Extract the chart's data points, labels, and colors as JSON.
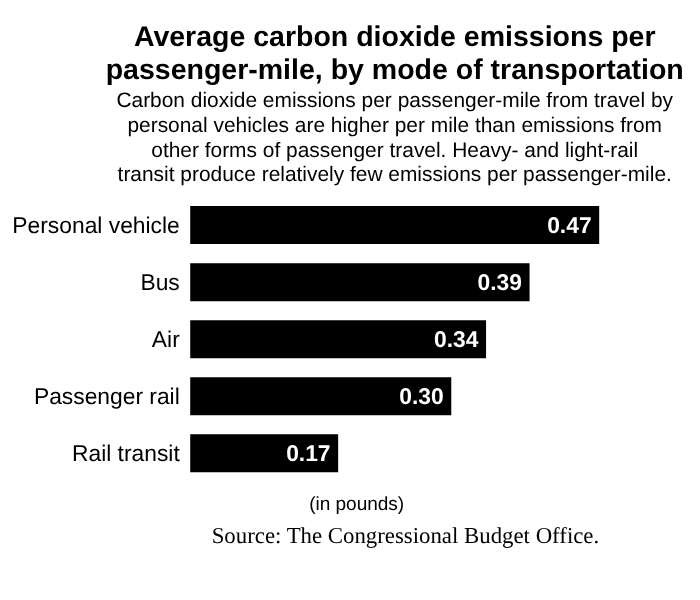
{
  "chart_data": {
    "type": "bar",
    "orientation": "horizontal",
    "title": "Average carbon dioxide emissions per passenger-mile, by mode of transportation",
    "subtitle": "Carbon dioxide emissions per passenger-mile from travel by personal vehicles are higher per mile than emissions from other forms of passenger travel. Heavy- and light-rail transit produce relatively few emissions per passenger-mile.",
    "categories": [
      "Personal vehicle",
      "Bus",
      "Air",
      "Passenger rail",
      "Rail transit"
    ],
    "values": [
      0.47,
      0.39,
      0.34,
      0.3,
      0.17
    ],
    "color": "#000000",
    "data_labels": true,
    "value_labels": [
      "0.47",
      "0.39",
      "0.34",
      "0.30",
      "0.17"
    ],
    "annotations": [
      "(in pounds)",
      "Source: The Congressional Budget Office."
    ]
  }
}
